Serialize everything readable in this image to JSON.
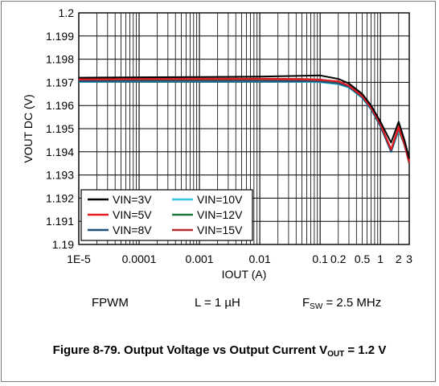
{
  "chart_data": {
    "type": "line",
    "xlabel": "IOUT (A)",
    "ylabel": "VOUT DC (V)",
    "xscale": "log",
    "xlim": [
      1e-05,
      3
    ],
    "ylim": [
      1.19,
      1.2
    ],
    "xticks": [
      1e-05,
      0.0001,
      0.001,
      0.01,
      0.1,
      0.2,
      0.5,
      1,
      2,
      3
    ],
    "xtick_labels": [
      "1E-5",
      "0.0001",
      "0.001",
      "0.01",
      "0.1",
      "0.2",
      "0.5",
      "1",
      "2",
      "3"
    ],
    "yticks": [
      1.19,
      1.191,
      1.192,
      1.193,
      1.194,
      1.195,
      1.196,
      1.197,
      1.198,
      1.199,
      1.2
    ],
    "ytick_labels": [
      "1.19",
      "1.191",
      "1.192",
      "1.193",
      "1.194",
      "1.195",
      "1.196",
      "1.197",
      "1.198",
      "1.199",
      "1.2"
    ],
    "grid": true,
    "legend_position": "bottom-left",
    "series": [
      {
        "name": "VIN=3V",
        "color": "#000000",
        "x": [
          1e-05,
          0.0001,
          0.001,
          0.01,
          0.05,
          0.1,
          0.2,
          0.3,
          0.5,
          0.7,
          1,
          1.5,
          2,
          2.5,
          3
        ],
        "y": [
          1.1972,
          1.19722,
          1.19723,
          1.19725,
          1.19728,
          1.1973,
          1.19715,
          1.19695,
          1.1965,
          1.196,
          1.1953,
          1.1944,
          1.1953,
          1.1945,
          1.1937
        ]
      },
      {
        "name": "VIN=5V",
        "color": "#e8191f",
        "x": [
          1e-05,
          0.0001,
          0.001,
          0.01,
          0.05,
          0.1,
          0.2,
          0.3,
          0.5,
          0.7,
          1,
          1.5,
          2,
          2.5,
          3
        ],
        "y": [
          1.19712,
          1.19714,
          1.19714,
          1.19714,
          1.19712,
          1.1971,
          1.19705,
          1.19685,
          1.1964,
          1.1959,
          1.1952,
          1.1941,
          1.1951,
          1.1944,
          1.1936
        ]
      },
      {
        "name": "VIN=8V",
        "color": "#1f4e79",
        "x": [
          1e-05,
          0.0001,
          0.001,
          0.01,
          0.05,
          0.1,
          0.2,
          0.3,
          0.5,
          0.7,
          1,
          1.5,
          2,
          2.5,
          3
        ],
        "y": [
          1.19705,
          1.19706,
          1.19706,
          1.19706,
          1.19705,
          1.19703,
          1.19695,
          1.1968,
          1.19635,
          1.19585,
          1.1951,
          1.194,
          1.195,
          1.1943,
          1.1935
        ]
      },
      {
        "name": "VIN=10V",
        "color": "#35c4d8",
        "x": [
          1e-05,
          0.0001,
          0.001,
          0.01,
          0.05,
          0.1,
          0.2,
          0.3,
          0.5,
          0.7,
          1,
          1.5,
          2,
          2.5,
          3
        ],
        "y": [
          1.19702,
          1.19703,
          1.19703,
          1.19703,
          1.19702,
          1.197,
          1.19692,
          1.19677,
          1.19632,
          1.19582,
          1.1951,
          1.194,
          1.1949,
          1.1943,
          1.1935
        ]
      },
      {
        "name": "VIN=12V",
        "color": "#1f7a3a",
        "x": [
          1e-05,
          0.0001,
          0.001,
          0.01,
          0.05,
          0.1,
          0.2,
          0.3,
          0.5,
          0.7,
          1,
          1.5,
          2,
          2.5,
          3
        ],
        "y": [
          1.19708,
          1.1971,
          1.1971,
          1.1971,
          1.19708,
          1.19706,
          1.19698,
          1.19682,
          1.19638,
          1.19588,
          1.19515,
          1.19405,
          1.195,
          1.1943,
          1.1935
        ]
      },
      {
        "name": "VIN=15V",
        "color": "#b02a2a",
        "x": [
          1e-05,
          0.0001,
          0.001,
          0.01,
          0.05,
          0.1,
          0.2,
          0.3,
          0.5,
          0.7,
          1,
          1.5,
          2,
          2.5,
          3
        ],
        "y": [
          1.19715,
          1.19716,
          1.19716,
          1.19716,
          1.19715,
          1.19712,
          1.19703,
          1.19686,
          1.19642,
          1.19592,
          1.1952,
          1.1941,
          1.195,
          1.1943,
          1.1935
        ]
      }
    ]
  },
  "conditions": {
    "mode": "FPWM",
    "inductor": "L = 1 µH",
    "fsw_symbol": "F",
    "fsw_subscript": "SW",
    "fsw_value": " = 2.5 MHz"
  },
  "caption": {
    "prefix": "Figure 8-79. Output Voltage vs Output Current V",
    "subscript": "OUT",
    "suffix": " = 1.2 V"
  }
}
